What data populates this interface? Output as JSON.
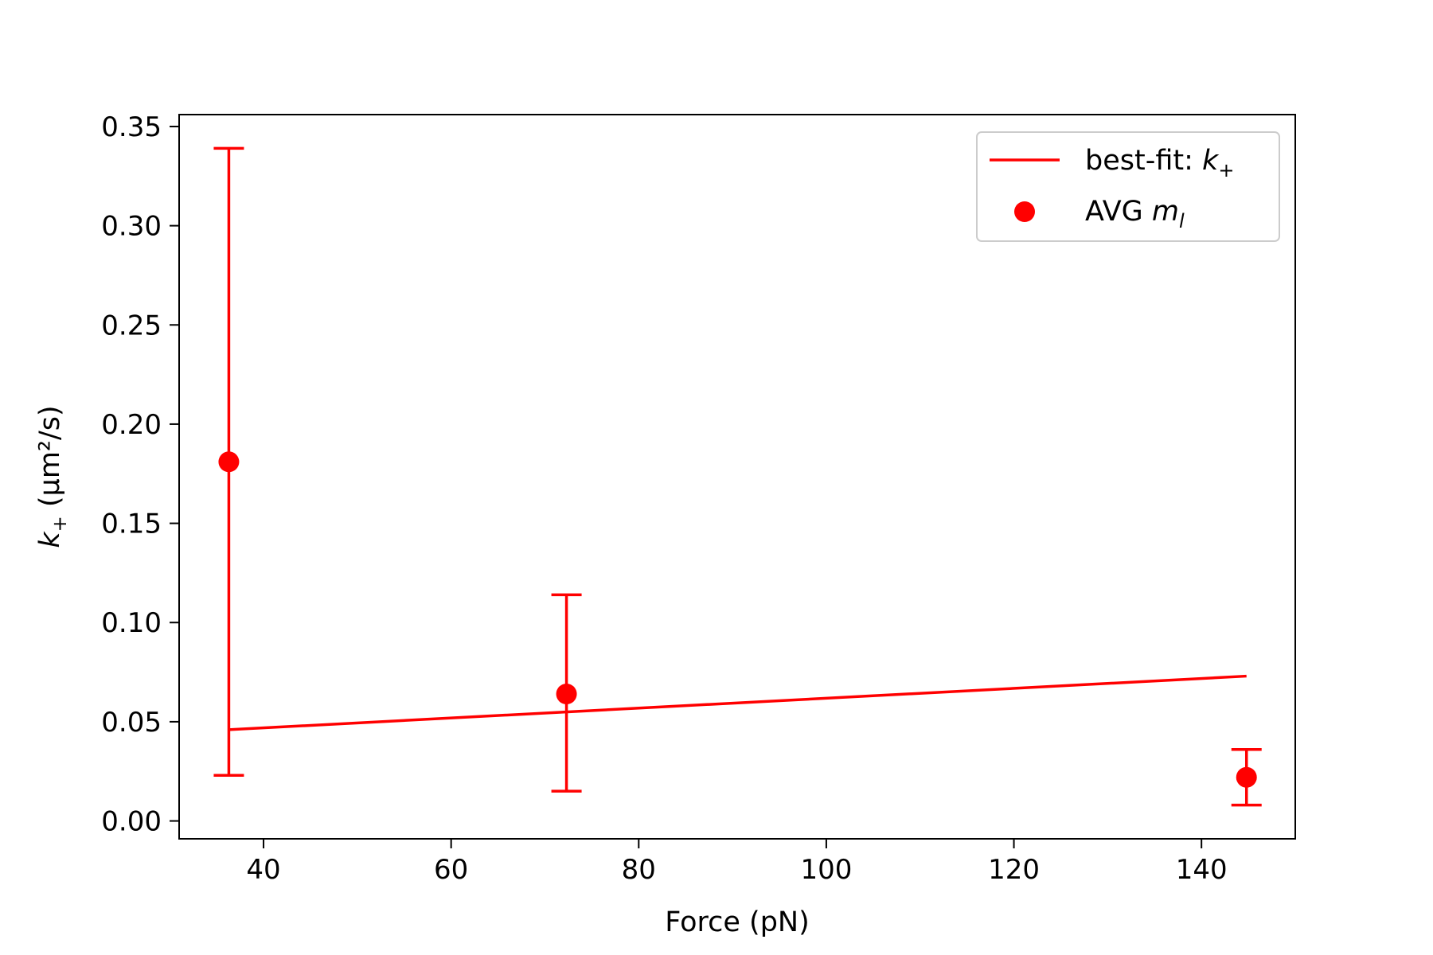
{
  "chart_data": {
    "type": "scatter",
    "xlabel": "Force (pN)",
    "ylabel": {
      "symbol": "k",
      "subscript": "+",
      "units": " (μm²/s)"
    },
    "xlim": [
      31,
      150
    ],
    "ylim": [
      -0.009,
      0.356
    ],
    "xticks": [
      40,
      60,
      80,
      100,
      120,
      140
    ],
    "xtick_labels": [
      "40",
      "60",
      "80",
      "100",
      "120",
      "140"
    ],
    "yticks": [
      0.0,
      0.05,
      0.1,
      0.15,
      0.2,
      0.25,
      0.3,
      0.35
    ],
    "ytick_labels": [
      "0.00",
      "0.05",
      "0.10",
      "0.15",
      "0.20",
      "0.25",
      "0.30",
      "0.35"
    ],
    "grid": false,
    "legend_position": "top-right",
    "color": "#ff0000",
    "series": [
      {
        "kind": "line",
        "legend": {
          "text": "best-fit: ",
          "symbol": "k",
          "subscript": "+"
        },
        "x": [
          36.3,
          144.8
        ],
        "y": [
          0.046,
          0.073
        ]
      },
      {
        "kind": "scatter-errorbar",
        "legend": {
          "text": "AVG ",
          "symbol": "m",
          "subscript": "l"
        },
        "x": [
          36.3,
          72.3,
          144.8
        ],
        "y": [
          0.181,
          0.064,
          0.022
        ],
        "yerr_low": [
          0.023,
          0.015,
          0.008
        ],
        "yerr_high": [
          0.339,
          0.114,
          0.036
        ]
      }
    ]
  }
}
